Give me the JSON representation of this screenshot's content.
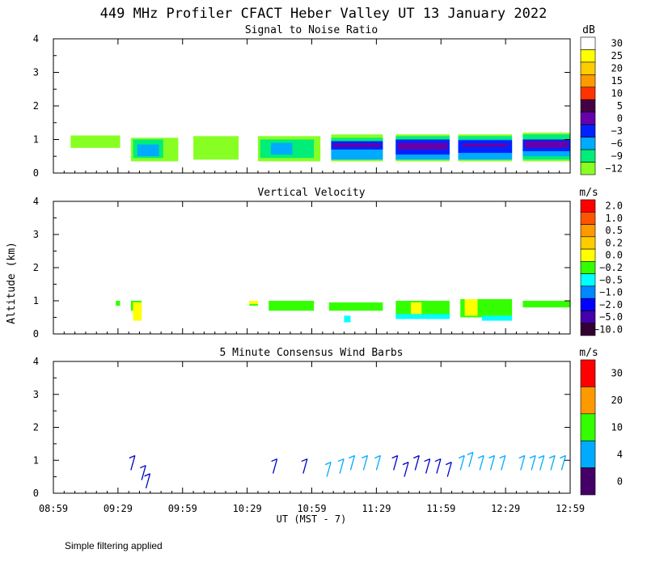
{
  "page_title": "449 MHz Profiler CFACT Heber Valley UT 13 January 2022",
  "footer_note": "Simple filtering applied",
  "colors": {
    "white": "#ffffff",
    "yellow": "#ffff00",
    "gold": "#ffcc00",
    "orange": "#ff9900",
    "dark_orange": "#ff6600",
    "red": "#ff0000",
    "dark_red": "#990000",
    "dark_purple": "#440066",
    "purple": "#6600cc",
    "blue": "#0000ff",
    "mid_blue": "#0066ff",
    "sky": "#00bbff",
    "cyan": "#00ffff",
    "green": "#00ff66",
    "bright_green": "#33ff00",
    "lime": "#88ff22",
    "near_black": "#330033"
  },
  "chart_data": [
    {
      "type": "heatmap",
      "title": "Signal to Noise Ratio",
      "xlabel": "UT  (MST - 7)",
      "ylabel": "Altitude (km)",
      "x_ticks": [
        "08:59",
        "09:29",
        "09:59",
        "10:29",
        "10:59",
        "11:29",
        "11:59",
        "12:29",
        "12:59"
      ],
      "y_ticks": [
        "0",
        "1",
        "2",
        "3",
        "4"
      ],
      "xlim_minutes_ut": [
        539,
        779
      ],
      "ylim_km": [
        0,
        4
      ],
      "legend_unit": "dB",
      "legend": [
        {
          "label": "30",
          "color": "#ffffff"
        },
        {
          "label": "25",
          "color": "#ffff00"
        },
        {
          "label": "20",
          "color": "#ffcc00"
        },
        {
          "label": "15",
          "color": "#ff9900"
        },
        {
          "label": "10",
          "color": "#ff3300"
        },
        {
          "label": "5",
          "color": "#440044"
        },
        {
          "label": "0",
          "color": "#6600aa"
        },
        {
          "label": "−3",
          "color": "#0022ff"
        },
        {
          "label": "−6",
          "color": "#00aaff"
        },
        {
          "label": "−9",
          "color": "#00ee77"
        },
        {
          "label": "−12",
          "color": "#88ff22"
        }
      ],
      "layers": [
        {
          "name": "low-level-green",
          "color": "#88ff22",
          "blocks": [
            {
              "t0": 547,
              "t1": 570,
              "z0": 0.75,
              "z1": 1.12
            },
            {
              "t0": 575,
              "t1": 597,
              "z0": 0.35,
              "z1": 1.05
            },
            {
              "t0": 604,
              "t1": 625,
              "z0": 0.4,
              "z1": 1.1
            },
            {
              "t0": 634,
              "t1": 663,
              "z0": 0.35,
              "z1": 1.1
            },
            {
              "t0": 668,
              "t1": 692,
              "z0": 0.35,
              "z1": 1.15
            },
            {
              "t0": 698,
              "t1": 723,
              "z0": 0.35,
              "z1": 1.15
            },
            {
              "t0": 727,
              "t1": 752,
              "z0": 0.35,
              "z1": 1.15
            },
            {
              "t0": 757,
              "t1": 779,
              "z0": 0.35,
              "z1": 1.2
            }
          ]
        },
        {
          "name": "mid-green",
          "color": "#00ee77",
          "blocks": [
            {
              "t0": 576,
              "t1": 590,
              "z0": 0.45,
              "z1": 1.0
            },
            {
              "t0": 635,
              "t1": 660,
              "z0": 0.45,
              "z1": 1.0
            },
            {
              "t0": 668,
              "t1": 692,
              "z0": 0.4,
              "z1": 1.05
            },
            {
              "t0": 698,
              "t1": 723,
              "z0": 0.4,
              "z1": 1.1
            },
            {
              "t0": 727,
              "t1": 752,
              "z0": 0.4,
              "z1": 1.1
            },
            {
              "t0": 757,
              "t1": 779,
              "z0": 0.4,
              "z1": 1.15
            }
          ]
        },
        {
          "name": "light-blue",
          "color": "#00aaff",
          "blocks": [
            {
              "t0": 578,
              "t1": 588,
              "z0": 0.5,
              "z1": 0.85
            },
            {
              "t0": 640,
              "t1": 650,
              "z0": 0.55,
              "z1": 0.9
            },
            {
              "t0": 668,
              "t1": 692,
              "z0": 0.4,
              "z1": 0.95
            },
            {
              "t0": 698,
              "t1": 723,
              "z0": 0.4,
              "z1": 1.0
            },
            {
              "t0": 727,
              "t1": 752,
              "z0": 0.4,
              "z1": 1.0
            },
            {
              "t0": 757,
              "t1": 779,
              "z0": 0.5,
              "z1": 1.0
            }
          ]
        },
        {
          "name": "blue-core",
          "color": "#0022ff",
          "blocks": [
            {
              "t0": 668,
              "t1": 692,
              "z0": 0.7,
              "z1": 0.95
            },
            {
              "t0": 698,
              "t1": 723,
              "z0": 0.55,
              "z1": 1.0
            },
            {
              "t0": 727,
              "t1": 752,
              "z0": 0.6,
              "z1": 0.98
            },
            {
              "t0": 757,
              "t1": 779,
              "z0": 0.65,
              "z1": 1.0
            }
          ]
        },
        {
          "name": "purple-core",
          "color": "#6600aa",
          "blocks": [
            {
              "t0": 669,
              "t1": 691,
              "z0": 0.78,
              "z1": 0.88
            },
            {
              "t0": 699,
              "t1": 722,
              "z0": 0.7,
              "z1": 0.9
            },
            {
              "t0": 729,
              "t1": 750,
              "z0": 0.78,
              "z1": 0.88
            },
            {
              "t0": 758,
              "t1": 778,
              "z0": 0.75,
              "z1": 0.95
            }
          ]
        }
      ]
    },
    {
      "type": "heatmap",
      "title": "Vertical Velocity",
      "xlabel": "UT  (MST - 7)",
      "ylabel": "Altitude (km)",
      "x_ticks": [
        "08:59",
        "09:29",
        "09:59",
        "10:29",
        "10:59",
        "11:29",
        "11:59",
        "12:29",
        "12:59"
      ],
      "y_ticks": [
        "0",
        "1",
        "2",
        "3",
        "4"
      ],
      "xlim_minutes_ut": [
        539,
        779
      ],
      "ylim_km": [
        0,
        4
      ],
      "legend_unit": "m/s",
      "legend": [
        {
          "label": "2.0",
          "color": "#ff0000"
        },
        {
          "label": "1.0",
          "color": "#ff5500"
        },
        {
          "label": "0.5",
          "color": "#ff9900"
        },
        {
          "label": "0.2",
          "color": "#ffcc00"
        },
        {
          "label": "0.0",
          "color": "#ffff00"
        },
        {
          "label": "−0.2",
          "color": "#33ff00"
        },
        {
          "label": "−0.5",
          "color": "#00ffff"
        },
        {
          "label": "−1.0",
          "color": "#0088ff"
        },
        {
          "label": "−2.0",
          "color": "#0000ff"
        },
        {
          "label": "−5.0",
          "color": "#4400aa"
        },
        {
          "label": "−10.0",
          "color": "#330033"
        }
      ],
      "layers": [
        {
          "name": "green",
          "color": "#33ff00",
          "blocks": [
            {
              "t0": 568,
              "t1": 570,
              "z0": 0.85,
              "z1": 1.0
            },
            {
              "t0": 575,
              "t1": 580,
              "z0": 0.7,
              "z1": 1.0
            },
            {
              "t0": 630,
              "t1": 634,
              "z0": 0.85,
              "z1": 1.0
            },
            {
              "t0": 639,
              "t1": 660,
              "z0": 0.7,
              "z1": 1.0
            },
            {
              "t0": 667,
              "t1": 692,
              "z0": 0.7,
              "z1": 0.95
            },
            {
              "t0": 698,
              "t1": 723,
              "z0": 0.5,
              "z1": 1.0
            },
            {
              "t0": 728,
              "t1": 752,
              "z0": 0.5,
              "z1": 1.05
            },
            {
              "t0": 757,
              "t1": 779,
              "z0": 0.8,
              "z1": 1.0
            }
          ]
        },
        {
          "name": "yellow",
          "color": "#ffff00",
          "blocks": [
            {
              "t0": 576,
              "t1": 580,
              "z0": 0.4,
              "z1": 0.95
            },
            {
              "t0": 630,
              "t1": 634,
              "z0": 0.9,
              "z1": 1.0
            },
            {
              "t0": 705,
              "t1": 710,
              "z0": 0.6,
              "z1": 0.95
            },
            {
              "t0": 730,
              "t1": 736,
              "z0": 0.55,
              "z1": 1.05
            }
          ]
        },
        {
          "name": "cyan",
          "color": "#00ffff",
          "blocks": [
            {
              "t0": 674,
              "t1": 677,
              "z0": 0.35,
              "z1": 0.55
            },
            {
              "t0": 698,
              "t1": 723,
              "z0": 0.45,
              "z1": 0.6
            },
            {
              "t0": 738,
              "t1": 752,
              "z0": 0.4,
              "z1": 0.55
            }
          ]
        }
      ]
    },
    {
      "type": "scatter",
      "title": "5 Minute Consensus Wind Barbs",
      "xlabel": "UT  (MST - 7)",
      "ylabel": "Altitude (km)",
      "x_ticks": [
        "08:59",
        "09:29",
        "09:59",
        "10:29",
        "10:59",
        "11:29",
        "11:59",
        "12:29",
        "12:59"
      ],
      "y_ticks": [
        "0",
        "1",
        "2",
        "3",
        "4"
      ],
      "xlim_minutes_ut": [
        539,
        779
      ],
      "ylim_km": [
        0,
        4
      ],
      "legend_unit": "m/s",
      "legend": [
        {
          "label": "30",
          "color": "#ff0000"
        },
        {
          "label": "20",
          "color": "#ff9900"
        },
        {
          "label": "10",
          "color": "#33ff00"
        },
        {
          "label": "4",
          "color": "#00aaff"
        },
        {
          "label": "0",
          "color": "#440066"
        }
      ],
      "barbs": [
        {
          "t": 575,
          "z": 0.7,
          "speed_ms": 2
        },
        {
          "t": 580,
          "z": 0.4,
          "speed_ms": 2
        },
        {
          "t": 582,
          "z": 0.15,
          "speed_ms": 2
        },
        {
          "t": 641,
          "z": 0.6,
          "speed_ms": 2
        },
        {
          "t": 655,
          "z": 0.6,
          "speed_ms": 2
        },
        {
          "t": 666,
          "z": 0.5,
          "speed_ms": 5
        },
        {
          "t": 672,
          "z": 0.6,
          "speed_ms": 5
        },
        {
          "t": 677,
          "z": 0.7,
          "speed_ms": 5
        },
        {
          "t": 683,
          "z": 0.7,
          "speed_ms": 5
        },
        {
          "t": 689,
          "z": 0.7,
          "speed_ms": 5
        },
        {
          "t": 697,
          "z": 0.7,
          "speed_ms": 3
        },
        {
          "t": 702,
          "z": 0.5,
          "speed_ms": 3
        },
        {
          "t": 707,
          "z": 0.7,
          "speed_ms": 3
        },
        {
          "t": 712,
          "z": 0.6,
          "speed_ms": 3
        },
        {
          "t": 717,
          "z": 0.6,
          "speed_ms": 3
        },
        {
          "t": 722,
          "z": 0.5,
          "speed_ms": 3
        },
        {
          "t": 728,
          "z": 0.7,
          "speed_ms": 5
        },
        {
          "t": 732,
          "z": 0.8,
          "speed_ms": 5
        },
        {
          "t": 737,
          "z": 0.7,
          "speed_ms": 5
        },
        {
          "t": 742,
          "z": 0.7,
          "speed_ms": 5
        },
        {
          "t": 747,
          "z": 0.7,
          "speed_ms": 5
        },
        {
          "t": 756,
          "z": 0.7,
          "speed_ms": 5
        },
        {
          "t": 761,
          "z": 0.7,
          "speed_ms": 5
        },
        {
          "t": 765,
          "z": 0.7,
          "speed_ms": 5
        },
        {
          "t": 770,
          "z": 0.7,
          "speed_ms": 5
        },
        {
          "t": 775,
          "z": 0.7,
          "speed_ms": 5
        }
      ]
    }
  ]
}
